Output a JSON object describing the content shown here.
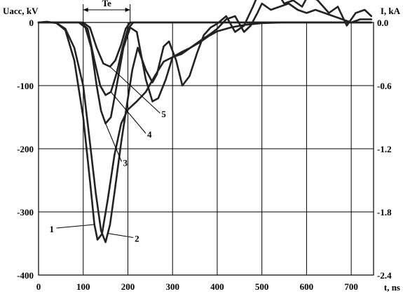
{
  "chart_data": {
    "type": "line",
    "ylabel_left": "Uacc, kV",
    "ylabel_right": "I, kA",
    "xlabel": "t, ns",
    "xlim": [
      0,
      750
    ],
    "ylim_left": [
      -400,
      0
    ],
    "ylim_right": [
      -2.4,
      0.0
    ],
    "x_ticks": [
      "0",
      "100",
      "200",
      "300",
      "400",
      "500",
      "600",
      "700"
    ],
    "y_ticks_left": [
      "0",
      "-100",
      "-200",
      "-300",
      "-400"
    ],
    "y_ticks_right": [
      "0.0",
      "-0.6",
      "-1.2",
      "-1.8",
      "-2.4"
    ],
    "grid": true,
    "annotation": {
      "label": "Te",
      "x_start": 100,
      "x_end": 205,
      "y": 20
    },
    "series": [
      {
        "name": "1",
        "label_at": [
          40,
          -330
        ],
        "points": [
          [
            0,
            0
          ],
          [
            20,
            1
          ],
          [
            40,
            -1
          ],
          [
            60,
            -12
          ],
          [
            80,
            -60
          ],
          [
            100,
            -150
          ],
          [
            115,
            -250
          ],
          [
            125,
            -320
          ],
          [
            132,
            -344
          ],
          [
            142,
            -335
          ],
          [
            155,
            -280
          ],
          [
            170,
            -210
          ],
          [
            185,
            -160
          ],
          [
            200,
            -138
          ],
          [
            220,
            -125
          ],
          [
            240,
            -110
          ],
          [
            260,
            -85
          ],
          [
            280,
            -62
          ],
          [
            300,
            -55
          ],
          [
            320,
            -47
          ],
          [
            340,
            -40
          ],
          [
            360,
            -32
          ],
          [
            380,
            -22
          ],
          [
            400,
            -14
          ],
          [
            430,
            -8
          ],
          [
            460,
            -4
          ],
          [
            500,
            -1
          ],
          [
            550,
            0
          ],
          [
            600,
            0
          ],
          [
            650,
            0
          ],
          [
            700,
            0
          ],
          [
            745,
            0
          ]
        ]
      },
      {
        "name": "2",
        "label_at": [
          212,
          -345
        ],
        "points": [
          [
            0,
            0
          ],
          [
            20,
            1
          ],
          [
            40,
            -1
          ],
          [
            60,
            -10
          ],
          [
            80,
            -40
          ],
          [
            100,
            -100
          ],
          [
            115,
            -190
          ],
          [
            128,
            -270
          ],
          [
            140,
            -330
          ],
          [
            150,
            -348
          ],
          [
            160,
            -320
          ],
          [
            170,
            -270
          ],
          [
            185,
            -190
          ],
          [
            200,
            -120
          ],
          [
            210,
            -75
          ],
          [
            222,
            -40
          ],
          [
            240,
            -75
          ],
          [
            255,
            -95
          ],
          [
            265,
            -82
          ],
          [
            280,
            -38
          ],
          [
            292,
            -30
          ],
          [
            308,
            -60
          ],
          [
            322,
            -100
          ],
          [
            338,
            -85
          ],
          [
            355,
            -48
          ],
          [
            370,
            -20
          ],
          [
            385,
            -8
          ],
          [
            400,
            -2
          ],
          [
            420,
            10
          ],
          [
            440,
            -15
          ],
          [
            460,
            -5
          ],
          [
            480,
            25
          ],
          [
            495,
            50
          ],
          [
            510,
            65
          ],
          [
            530,
            52
          ],
          [
            550,
            30
          ],
          [
            570,
            35
          ],
          [
            590,
            25
          ],
          [
            605,
            45
          ],
          [
            625,
            35
          ],
          [
            650,
            15
          ],
          [
            670,
            25
          ],
          [
            690,
            -5
          ],
          [
            710,
            15
          ],
          [
            730,
            20
          ],
          [
            745,
            10
          ]
        ]
      },
      {
        "name": "3",
        "label_at": [
          186,
          -225
        ],
        "points": [
          [
            0,
            0
          ],
          [
            90,
            0
          ],
          [
            105,
            -8
          ],
          [
            118,
            -40
          ],
          [
            130,
            -100
          ],
          [
            140,
            -140
          ],
          [
            150,
            -160
          ],
          [
            162,
            -150
          ],
          [
            175,
            -100
          ],
          [
            190,
            -40
          ],
          [
            205,
            -8
          ],
          [
            220,
            -15
          ],
          [
            240,
            -90
          ],
          [
            255,
            -125
          ],
          [
            268,
            -120
          ],
          [
            285,
            -90
          ],
          [
            300,
            -55
          ],
          [
            320,
            -50
          ],
          [
            340,
            -40
          ],
          [
            360,
            -30
          ],
          [
            385,
            -18
          ],
          [
            400,
            -10
          ],
          [
            420,
            5
          ],
          [
            440,
            10
          ],
          [
            460,
            -15
          ],
          [
            475,
            -5
          ],
          [
            490,
            15
          ],
          [
            500,
            30
          ],
          [
            520,
            20
          ],
          [
            540,
            25
          ],
          [
            560,
            30
          ],
          [
            580,
            20
          ],
          [
            600,
            15
          ],
          [
            620,
            20
          ],
          [
            640,
            15
          ],
          [
            660,
            10
          ],
          [
            680,
            5
          ],
          [
            700,
            0
          ],
          [
            720,
            5
          ],
          [
            745,
            5
          ]
        ]
      },
      {
        "name": "4",
        "label_at": [
          240,
          -180
        ],
        "points": [
          [
            0,
            0
          ],
          [
            95,
            0
          ],
          [
            110,
            -10
          ],
          [
            125,
            -60
          ],
          [
            138,
            -100
          ],
          [
            150,
            -115
          ],
          [
            162,
            -110
          ],
          [
            175,
            -80
          ],
          [
            188,
            -40
          ],
          [
            200,
            -10
          ],
          [
            212,
            0
          ],
          [
            240,
            0
          ],
          [
            300,
            0
          ],
          [
            400,
            0
          ],
          [
            500,
            0
          ],
          [
            600,
            0
          ],
          [
            700,
            0
          ],
          [
            745,
            0
          ]
        ]
      },
      {
        "name": "5",
        "label_at": [
          272,
          -148
        ],
        "points": [
          [
            0,
            0
          ],
          [
            100,
            0
          ],
          [
            115,
            -8
          ],
          [
            130,
            -40
          ],
          [
            145,
            -65
          ],
          [
            160,
            -70
          ],
          [
            172,
            -60
          ],
          [
            185,
            -35
          ],
          [
            195,
            -10
          ],
          [
            205,
            0
          ],
          [
            240,
            0
          ],
          [
            300,
            0
          ],
          [
            400,
            0
          ],
          [
            500,
            0
          ],
          [
            600,
            0
          ],
          [
            700,
            0
          ],
          [
            745,
            0
          ]
        ]
      }
    ]
  }
}
